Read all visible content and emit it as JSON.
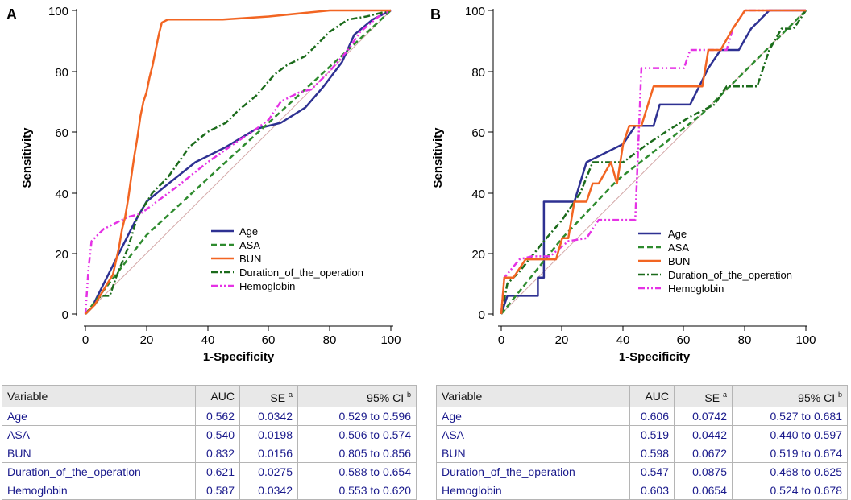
{
  "chart_data": [
    {
      "panel": "A",
      "type": "line",
      "title": "",
      "xlabel": "1-Specificity",
      "ylabel": "Sensitivity",
      "xlim": [
        0,
        100
      ],
      "ylim": [
        0,
        100
      ],
      "xticks": [
        0,
        20,
        40,
        60,
        80,
        100
      ],
      "yticks": [
        0,
        20,
        40,
        60,
        80,
        100
      ],
      "legend_position": "center-right",
      "series": [
        {
          "name": "Age",
          "color": "#2e3192",
          "style": "solid",
          "points": [
            [
              0,
              0
            ],
            [
              2,
              2
            ],
            [
              5,
              8
            ],
            [
              10,
              18
            ],
            [
              16,
              30
            ],
            [
              20,
              37
            ],
            [
              26,
              42
            ],
            [
              36,
              50
            ],
            [
              46,
              55
            ],
            [
              56,
              61
            ],
            [
              64,
              63
            ],
            [
              72,
              68
            ],
            [
              78,
              75
            ],
            [
              84,
              83
            ],
            [
              88,
              92
            ],
            [
              94,
              97
            ],
            [
              100,
              100
            ]
          ]
        },
        {
          "name": "ASA",
          "color": "#2e8b2e",
          "style": "dash",
          "points": [
            [
              0,
              0
            ],
            [
              20,
              26
            ],
            [
              48,
              52
            ],
            [
              73,
              75
            ],
            [
              100,
              100
            ]
          ]
        },
        {
          "name": "BUN",
          "color": "#f26522",
          "style": "solid-steps",
          "points": [
            [
              0,
              0
            ],
            [
              3,
              3
            ],
            [
              6,
              8
            ],
            [
              9,
              13
            ],
            [
              11,
              22
            ],
            [
              12,
              28
            ],
            [
              13,
              32
            ],
            [
              14,
              38
            ],
            [
              15,
              45
            ],
            [
              16,
              52
            ],
            [
              17,
              58
            ],
            [
              18,
              65
            ],
            [
              19,
              70
            ],
            [
              20,
              73
            ],
            [
              21,
              78
            ],
            [
              22,
              82
            ],
            [
              23,
              87
            ],
            [
              24,
              92
            ],
            [
              25,
              96
            ],
            [
              27,
              97
            ],
            [
              45,
              97
            ],
            [
              60,
              98
            ],
            [
              80,
              100
            ],
            [
              100,
              100
            ]
          ]
        },
        {
          "name": "Duration_of_the_operation",
          "color": "#1b6b1b",
          "style": "dashdot",
          "points": [
            [
              0,
              0
            ],
            [
              3,
              3
            ],
            [
              5,
              6
            ],
            [
              8,
              6
            ],
            [
              10,
              12
            ],
            [
              14,
              22
            ],
            [
              17,
              32
            ],
            [
              22,
              40
            ],
            [
              27,
              45
            ],
            [
              34,
              55
            ],
            [
              40,
              60
            ],
            [
              46,
              63
            ],
            [
              50,
              67
            ],
            [
              56,
              72
            ],
            [
              62,
              79
            ],
            [
              66,
              82
            ],
            [
              72,
              85
            ],
            [
              80,
              93
            ],
            [
              86,
              97
            ],
            [
              92,
              98
            ],
            [
              100,
              100
            ]
          ]
        },
        {
          "name": "Hemoglobin",
          "color": "#e532e5",
          "style": "dashdotdot",
          "points": [
            [
              0,
              0
            ],
            [
              1,
              15
            ],
            [
              2,
              24
            ],
            [
              6,
              28
            ],
            [
              10,
              30
            ],
            [
              14,
              32
            ],
            [
              18,
              33
            ],
            [
              22,
              36
            ],
            [
              30,
              42
            ],
            [
              40,
              50
            ],
            [
              50,
              57
            ],
            [
              56,
              61
            ],
            [
              60,
              64
            ],
            [
              64,
              70
            ],
            [
              70,
              73
            ],
            [
              74,
              74
            ],
            [
              80,
              80
            ],
            [
              86,
              87
            ],
            [
              90,
              93
            ],
            [
              96,
              98
            ],
            [
              100,
              100
            ]
          ]
        },
        {
          "name": "Reference",
          "color": "#d4a8a8",
          "style": "thin",
          "points": [
            [
              0,
              0
            ],
            [
              100,
              100
            ]
          ]
        }
      ]
    },
    {
      "panel": "B",
      "type": "line",
      "title": "",
      "xlabel": "1-Specificity",
      "ylabel": "Sensitivity",
      "xlim": [
        0,
        100
      ],
      "ylim": [
        0,
        100
      ],
      "xticks": [
        0,
        20,
        40,
        60,
        80,
        100
      ],
      "yticks": [
        0,
        20,
        40,
        60,
        80,
        100
      ],
      "legend_position": "bottom-right",
      "series": [
        {
          "name": "Age",
          "color": "#2e3192",
          "style": "solid",
          "points": [
            [
              0,
              0
            ],
            [
              2,
              6
            ],
            [
              8,
              6
            ],
            [
              12,
              6
            ],
            [
              12,
              12
            ],
            [
              14,
              12
            ],
            [
              14,
              37
            ],
            [
              24,
              37
            ],
            [
              28,
              50
            ],
            [
              40,
              56
            ],
            [
              44,
              62
            ],
            [
              50,
              62
            ],
            [
              52,
              69
            ],
            [
              56,
              69
            ],
            [
              62,
              69
            ],
            [
              68,
              81
            ],
            [
              72,
              87
            ],
            [
              78,
              87
            ],
            [
              82,
              94
            ],
            [
              88,
              100
            ],
            [
              100,
              100
            ]
          ]
        },
        {
          "name": "ASA",
          "color": "#2e8b2e",
          "style": "dash",
          "points": [
            [
              0,
              0
            ],
            [
              20,
              25
            ],
            [
              38,
              44
            ],
            [
              66,
              66
            ],
            [
              80,
              80
            ],
            [
              100,
              100
            ]
          ]
        },
        {
          "name": "BUN",
          "color": "#f26522",
          "style": "solid",
          "points": [
            [
              0,
              0
            ],
            [
              1,
              12
            ],
            [
              4,
              12
            ],
            [
              8,
              18
            ],
            [
              18,
              18
            ],
            [
              20,
              25
            ],
            [
              22,
              25
            ],
            [
              24,
              37
            ],
            [
              28,
              37
            ],
            [
              30,
              43
            ],
            [
              32,
              43
            ],
            [
              36,
              50
            ],
            [
              38,
              43
            ],
            [
              40,
              56
            ],
            [
              42,
              62
            ],
            [
              46,
              62
            ],
            [
              50,
              75
            ],
            [
              54,
              75
            ],
            [
              58,
              75
            ],
            [
              62,
              75
            ],
            [
              66,
              75
            ],
            [
              68,
              87
            ],
            [
              72,
              87
            ],
            [
              76,
              94
            ],
            [
              80,
              100
            ],
            [
              100,
              100
            ]
          ]
        },
        {
          "name": "Duration_of_the_operation",
          "color": "#1b6b1b",
          "style": "dashdot",
          "points": [
            [
              0,
              0
            ],
            [
              2,
              10
            ],
            [
              6,
              14
            ],
            [
              10,
              19
            ],
            [
              14,
              24
            ],
            [
              20,
              31
            ],
            [
              26,
              40
            ],
            [
              30,
              50
            ],
            [
              40,
              50
            ],
            [
              48,
              56
            ],
            [
              54,
              60
            ],
            [
              62,
              65
            ],
            [
              70,
              69
            ],
            [
              74,
              75
            ],
            [
              84,
              75
            ],
            [
              88,
              87
            ],
            [
              92,
              94
            ],
            [
              96,
              94
            ],
            [
              100,
              100
            ]
          ]
        },
        {
          "name": "Hemoglobin",
          "color": "#e532e5",
          "style": "dashdotdot",
          "points": [
            [
              0,
              0
            ],
            [
              1,
              12
            ],
            [
              6,
              18
            ],
            [
              10,
              19
            ],
            [
              16,
              19
            ],
            [
              22,
              24
            ],
            [
              28,
              25
            ],
            [
              32,
              31
            ],
            [
              38,
              31
            ],
            [
              44,
              31
            ],
            [
              46,
              81
            ],
            [
              60,
              81
            ],
            [
              62,
              87
            ],
            [
              74,
              87
            ],
            [
              76,
              94
            ],
            [
              80,
              100
            ],
            [
              100,
              100
            ]
          ]
        },
        {
          "name": "Reference",
          "color": "#d4a8a8",
          "style": "thin",
          "points": [
            [
              0,
              0
            ],
            [
              100,
              100
            ]
          ]
        }
      ]
    }
  ],
  "panels": {
    "a": {
      "letter": "A",
      "xlabel": "1-Specificity",
      "ylabel": "Sensitivity",
      "ticks": [
        "0",
        "20",
        "40",
        "60",
        "80",
        "100"
      ],
      "legend": [
        "Age",
        "ASA",
        "BUN",
        "Duration_of_the_operation",
        "Hemoglobin"
      ]
    },
    "b": {
      "letter": "B",
      "xlabel": "1-Specificity",
      "ylabel": "Sensitivity",
      "ticks": [
        "0",
        "20",
        "40",
        "60",
        "80",
        "100"
      ],
      "legend": [
        "Age",
        "ASA",
        "BUN",
        "Duration_of_the_operation",
        "Hemoglobin"
      ]
    }
  },
  "colors": {
    "age": "#2e3192",
    "asa": "#2e8b2e",
    "bun": "#f26522",
    "duration": "#1b6b1b",
    "hemoglobin": "#e532e5",
    "reference": "#d4a8a8"
  },
  "tables": {
    "a": {
      "headers": {
        "variable": "Variable",
        "auc": "AUC",
        "se": "SE",
        "se_sup": "a",
        "ci": "95% CI",
        "ci_sup": "b"
      },
      "rows": [
        {
          "variable": "Age",
          "auc": "0.562",
          "se": "0.0342",
          "ci": "0.529 to 0.596"
        },
        {
          "variable": "ASA",
          "auc": "0.540",
          "se": "0.0198",
          "ci": "0.506 to 0.574"
        },
        {
          "variable": "BUN",
          "auc": "0.832",
          "se": "0.0156",
          "ci": "0.805 to 0.856"
        },
        {
          "variable": "Duration_of_the_operation",
          "auc": "0.621",
          "se": "0.0275",
          "ci": "0.588 to 0.654"
        },
        {
          "variable": "Hemoglobin",
          "auc": "0.587",
          "se": "0.0342",
          "ci": "0.553 to 0.620"
        }
      ]
    },
    "b": {
      "headers": {
        "variable": "Variable",
        "auc": "AUC",
        "se": "SE",
        "se_sup": "a",
        "ci": "95% CI",
        "ci_sup": "b"
      },
      "rows": [
        {
          "variable": "Age",
          "auc": "0.606",
          "se": "0.0742",
          "ci": "0.527 to 0.681"
        },
        {
          "variable": "ASA",
          "auc": "0.519",
          "se": "0.0442",
          "ci": "0.440 to 0.597"
        },
        {
          "variable": "BUN",
          "auc": "0.598",
          "se": "0.0672",
          "ci": "0.519 to 0.674"
        },
        {
          "variable": "Duration_of_the_operation",
          "auc": "0.547",
          "se": "0.0875",
          "ci": "0.468 to 0.625"
        },
        {
          "variable": "Hemoglobin",
          "auc": "0.603",
          "se": "0.0654",
          "ci": "0.524 to 0.678"
        }
      ]
    }
  }
}
